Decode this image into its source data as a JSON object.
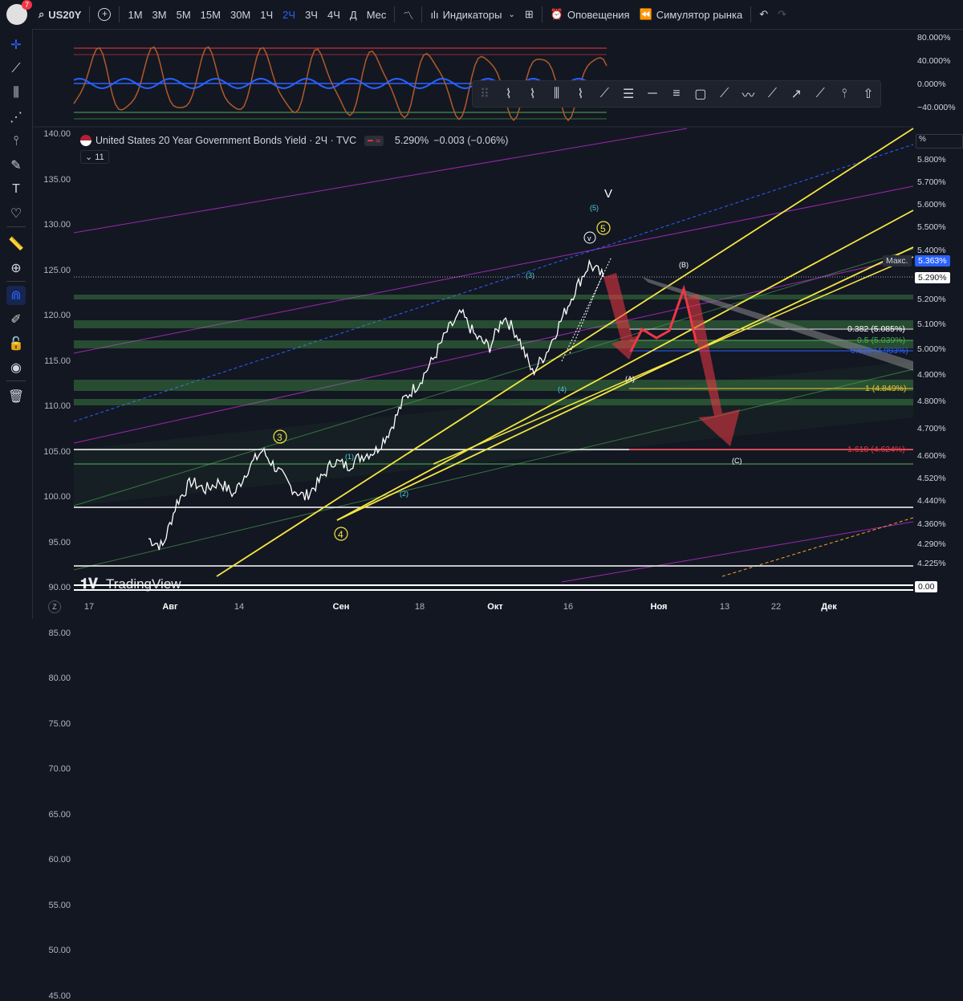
{
  "symbol": "US20Y",
  "notification_count": "7",
  "timeframes": [
    "1М",
    "3М",
    "5М",
    "15М",
    "30М",
    "1Ч",
    "2Ч",
    "3Ч",
    "4Ч",
    "Д",
    "Мес"
  ],
  "active_timeframe": "2Ч",
  "toolbar": {
    "indicators": "Индикаторы",
    "alerts": "Оповещения",
    "replay": "Симулятор рынка"
  },
  "legend": {
    "title": "United States 20 Year Government Bonds Yield · 2Ч · TVC",
    "last": "5.290%",
    "change": "−0.003 (−0.06%)",
    "collapsed_count": "11"
  },
  "oscillator_axis": [
    "80.000%",
    "40.000%",
    "0.000%",
    "−40.000%"
  ],
  "right_axis": {
    "unit": "%",
    "ticks": [
      "5.800%",
      "5.700%",
      "5.600%",
      "5.500%",
      "5.400%",
      "5.200%",
      "5.100%",
      "5.000%",
      "4.900%",
      "4.800%",
      "4.700%",
      "4.600%",
      "4.520%",
      "4.440%",
      "4.360%",
      "4.290%",
      "4.225%"
    ],
    "max_label": "Макс.",
    "max_value": "5.363%",
    "last_value": "5.290%",
    "bottom_value": "0.00"
  },
  "left_axis": [
    "140.00",
    "135.00",
    "130.00",
    "125.00",
    "120.00",
    "115.00",
    "110.00",
    "105.00",
    "100.00",
    "95.00",
    "90.00",
    "85.00",
    "80.00",
    "75.00",
    "70.00",
    "65.00",
    "60.00",
    "55.00",
    "50.00",
    "45.00"
  ],
  "time_axis": [
    {
      "label": "17",
      "bold": false
    },
    {
      "label": "Авг",
      "bold": true
    },
    {
      "label": "14",
      "bold": false
    },
    {
      "label": "Сен",
      "bold": true
    },
    {
      "label": "18",
      "bold": false
    },
    {
      "label": "Окт",
      "bold": true
    },
    {
      "label": "16",
      "bold": false
    },
    {
      "label": "Ноя",
      "bold": true
    },
    {
      "label": "13",
      "bold": false
    },
    {
      "label": "22",
      "bold": false
    },
    {
      "label": "Дек",
      "bold": true
    }
  ],
  "fib_levels": [
    {
      "label": "0.382 (5.085%)",
      "color": "#ffffff"
    },
    {
      "label": "0.5 (5.039%)",
      "color": "#4caf50"
    },
    {
      "label": "0.618 (4.993%)",
      "color": "#2962ff"
    },
    {
      "label": "1 (4.849%)",
      "color": "#f0c030"
    },
    {
      "label": "1.618 (4.624%)",
      "color": "#f23645"
    }
  ],
  "wave_labels": {
    "big_v": "V",
    "minor_5": "(5)",
    "circle_v": "v",
    "circle_5": "5",
    "circle_3": "3",
    "circle_4": "4",
    "minor_3": "(3)",
    "minor_4": "(4)",
    "minor_1": "(1)",
    "minor_2": "(2)",
    "corr_a": "(A)",
    "corr_b": "(B)",
    "corr_c": "(C)"
  },
  "watermark": "TradingView",
  "colors": {
    "background": "#131722",
    "accent": "#2962ff",
    "trend_yellow": "#f5e642",
    "channel_purple": "#9c27b0",
    "channel_green": "#4caf50",
    "projection_red": "#f23645"
  },
  "chart_data": {
    "type": "line",
    "title": "United States 20 Year Government Bonds Yield · 2Ч · TVC",
    "x_ticks": [
      "17",
      "Авг",
      "14",
      "Сен",
      "18",
      "Окт",
      "16",
      "Ноя",
      "13",
      "22",
      "Дек"
    ],
    "ylim": [
      4.2,
      5.85
    ],
    "y_unit": "%",
    "series": [
      {
        "values": [
          4.28,
          4.25,
          4.42,
          4.5,
          4.47,
          4.5,
          4.45,
          4.55,
          4.62,
          4.55,
          4.48,
          4.44,
          4.5,
          4.58,
          4.56,
          4.6,
          4.62,
          4.7,
          4.82,
          4.88,
          4.97,
          5.08,
          5.15,
          5.06,
          5.02,
          5.14,
          5.06,
          4.92,
          5.0,
          5.12,
          5.24,
          5.34,
          5.29
        ]
      }
    ],
    "fib_retracements": [
      {
        "ratio": 0.382,
        "value": 5.085
      },
      {
        "ratio": 0.5,
        "value": 5.039
      },
      {
        "ratio": 0.618,
        "value": 4.993
      },
      {
        "ratio": 1,
        "value": 4.849
      },
      {
        "ratio": 1.618,
        "value": 4.624
      }
    ],
    "last": 5.29,
    "high": 5.363
  }
}
